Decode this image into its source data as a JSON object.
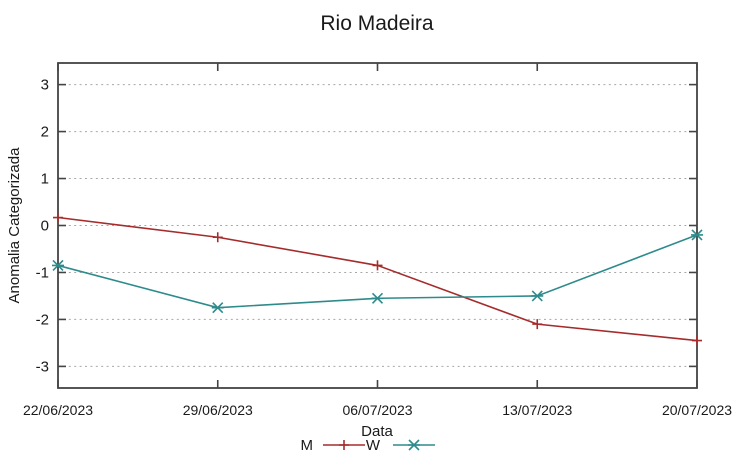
{
  "page": {
    "background": "#ffffff"
  },
  "chart_data": {
    "type": "line",
    "title": "Rio Madeira",
    "xlabel": "Data",
    "ylabel": "Anomalia Categorizada",
    "x": [
      "22/06/2023",
      "29/06/2023",
      "06/07/2023",
      "13/07/2023",
      "20/07/2023"
    ],
    "yticks": [
      3,
      2,
      1,
      0,
      -1,
      -2,
      -3
    ],
    "ylim": [
      -3.46,
      3.46
    ],
    "grid": true,
    "grid_style": "dotted",
    "legend_position": "bottom-center",
    "series": [
      {
        "name": "M",
        "marker": "plus",
        "color": "#a52c2c",
        "values": [
          0.17,
          -0.25,
          -0.85,
          -2.1,
          -2.45
        ]
      },
      {
        "name": "W",
        "marker": "cross",
        "color": "#2e8b8b",
        "values": [
          -0.85,
          -1.75,
          -1.55,
          -1.5,
          -0.2
        ]
      }
    ],
    "axis_color": "#444444",
    "grid_color": "#a8a8a8",
    "text_color": "#1a1a1a"
  }
}
